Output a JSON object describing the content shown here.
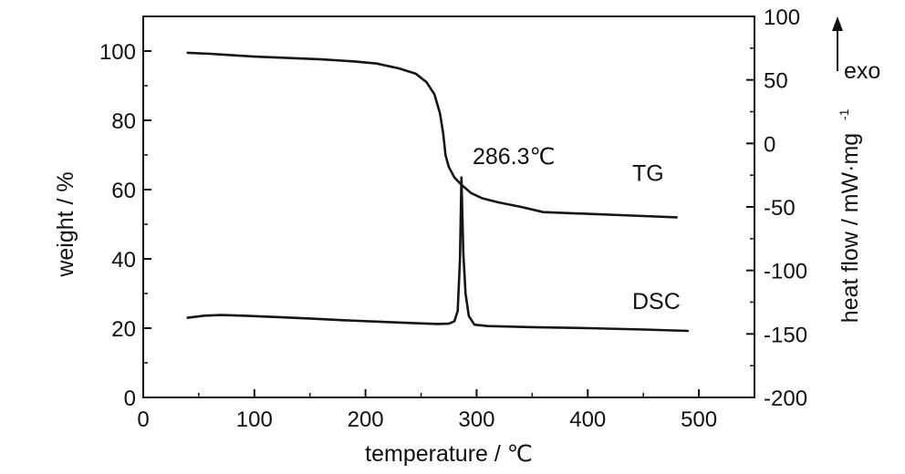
{
  "chart_data": {
    "type": "line",
    "xlabel": "temperature / ℃",
    "ylabel_left": "weight / %",
    "ylabel_right": "heat flow / mW·mg",
    "ylabel_right_exponent": "-1",
    "xlim": [
      0,
      550
    ],
    "ylim_left": [
      0,
      110
    ],
    "ylim_right": [
      -200,
      100
    ],
    "x_ticks": [
      "0",
      "100",
      "200",
      "300",
      "400",
      "500"
    ],
    "y_left_ticks": [
      "0",
      "20",
      "40",
      "60",
      "80",
      "100"
    ],
    "y_right_ticks": [
      "100",
      "50",
      "0",
      "-50",
      "-100",
      "-150",
      "-200"
    ],
    "exo_label": "exo",
    "peak_annotation": {
      "text": "286.3℃",
      "x": 286.3
    },
    "grid": false,
    "series": [
      {
        "name": "TG",
        "axis": "left",
        "points": [
          [
            40,
            99.5
          ],
          [
            60,
            99.2
          ],
          [
            80,
            98.8
          ],
          [
            100,
            98.4
          ],
          [
            130,
            98.0
          ],
          [
            160,
            97.6
          ],
          [
            190,
            97.0
          ],
          [
            210,
            96.4
          ],
          [
            230,
            95.0
          ],
          [
            245,
            93.5
          ],
          [
            255,
            91.0
          ],
          [
            262,
            87.5
          ],
          [
            267,
            82.0
          ],
          [
            270,
            76.0
          ],
          [
            272,
            70.0
          ],
          [
            275,
            66.5
          ],
          [
            280,
            63.5
          ],
          [
            286,
            61.5
          ],
          [
            295,
            59.0
          ],
          [
            305,
            57.5
          ],
          [
            320,
            56.3
          ],
          [
            340,
            55.0
          ],
          [
            360,
            53.5
          ],
          [
            400,
            53.0
          ],
          [
            440,
            52.5
          ],
          [
            480,
            52.0
          ]
        ]
      },
      {
        "name": "DSC",
        "axis": "left",
        "points": [
          [
            40,
            23.0
          ],
          [
            55,
            23.6
          ],
          [
            70,
            23.8
          ],
          [
            90,
            23.6
          ],
          [
            120,
            23.2
          ],
          [
            150,
            22.8
          ],
          [
            180,
            22.3
          ],
          [
            210,
            21.9
          ],
          [
            240,
            21.5
          ],
          [
            265,
            21.2
          ],
          [
            275,
            21.3
          ],
          [
            280,
            22.0
          ],
          [
            283,
            25.0
          ],
          [
            285,
            40.0
          ],
          [
            286.3,
            63.5
          ],
          [
            288,
            42.0
          ],
          [
            290,
            30.0
          ],
          [
            293,
            23.5
          ],
          [
            298,
            21.0
          ],
          [
            310,
            20.6
          ],
          [
            350,
            20.3
          ],
          [
            400,
            20.0
          ],
          [
            450,
            19.6
          ],
          [
            490,
            19.2
          ]
        ]
      }
    ]
  }
}
